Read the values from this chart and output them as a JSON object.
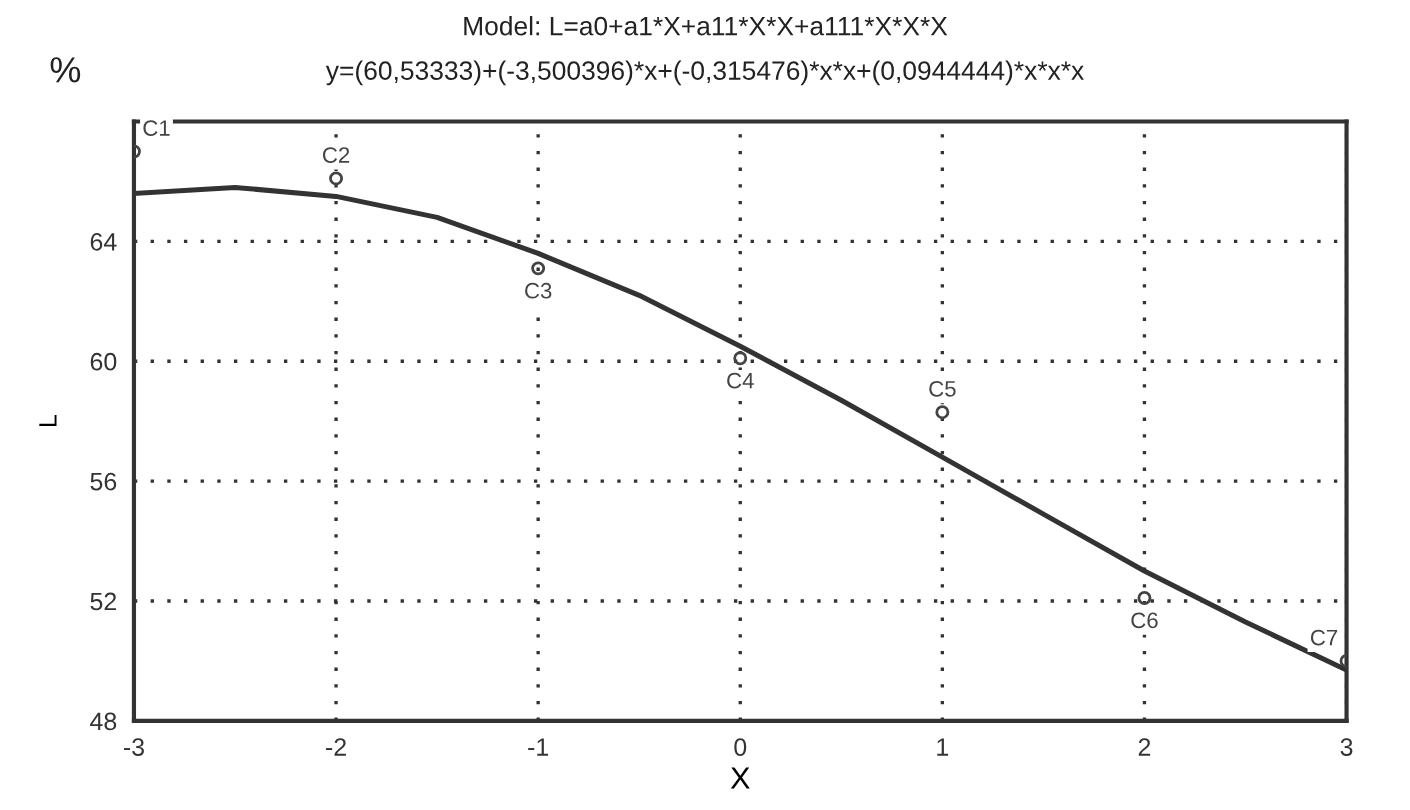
{
  "chart_data": {
    "type": "scatter",
    "title": "Model: L=a0+a1*X+a11*X*X+a111*X*X*X",
    "subtitle": "y=(60,53333)+(-3,500396)*x+(-0,315476)*x*x+(0,0944444)*x*x*x",
    "xlabel": "X",
    "ylabel": "L",
    "xlim": [
      -3,
      3
    ],
    "xticks": [
      -3,
      -2,
      -1,
      0,
      1,
      2,
      3
    ],
    "ylim": [
      48,
      68
    ],
    "yticks": [
      48,
      52,
      56,
      60,
      64
    ],
    "grid": true,
    "series": [
      {
        "color": "#444444",
        "marker": "circle",
        "x": [
          -3,
          -2,
          -1,
          0,
          1,
          2,
          3
        ],
        "values": [
          67.0,
          66.1,
          63.1,
          60.1,
          58.3,
          52.1,
          50.0
        ]
      },
      {
        "type": "line",
        "color": "#333333",
        "marker": "none",
        "line_style": "solid",
        "x": [
          -3,
          -2.5,
          -2,
          -1.5,
          -1,
          -0.5,
          0,
          0.5,
          1,
          1.5,
          2,
          2.5,
          3
        ],
        "values": [
          65.6,
          65.8,
          65.5,
          64.8,
          63.6,
          62.2,
          60.5,
          58.7,
          56.8,
          54.9,
          53.0,
          51.3,
          49.7
        ]
      }
    ],
    "annotations": [
      "%",
      {
        "text": "C1",
        "x": -3,
        "y": 67.0
      },
      {
        "text": "C2",
        "x": -2,
        "y": 66.1
      },
      {
        "text": "C3",
        "x": -1,
        "y": 63.1
      },
      {
        "text": "C4",
        "x": 0,
        "y": 60.1
      },
      {
        "text": "C5",
        "x": 1,
        "y": 58.3
      },
      {
        "text": "C6",
        "x": 2,
        "y": 52.1
      },
      {
        "text": "C7",
        "x": 3,
        "y": 50.0
      }
    ]
  }
}
